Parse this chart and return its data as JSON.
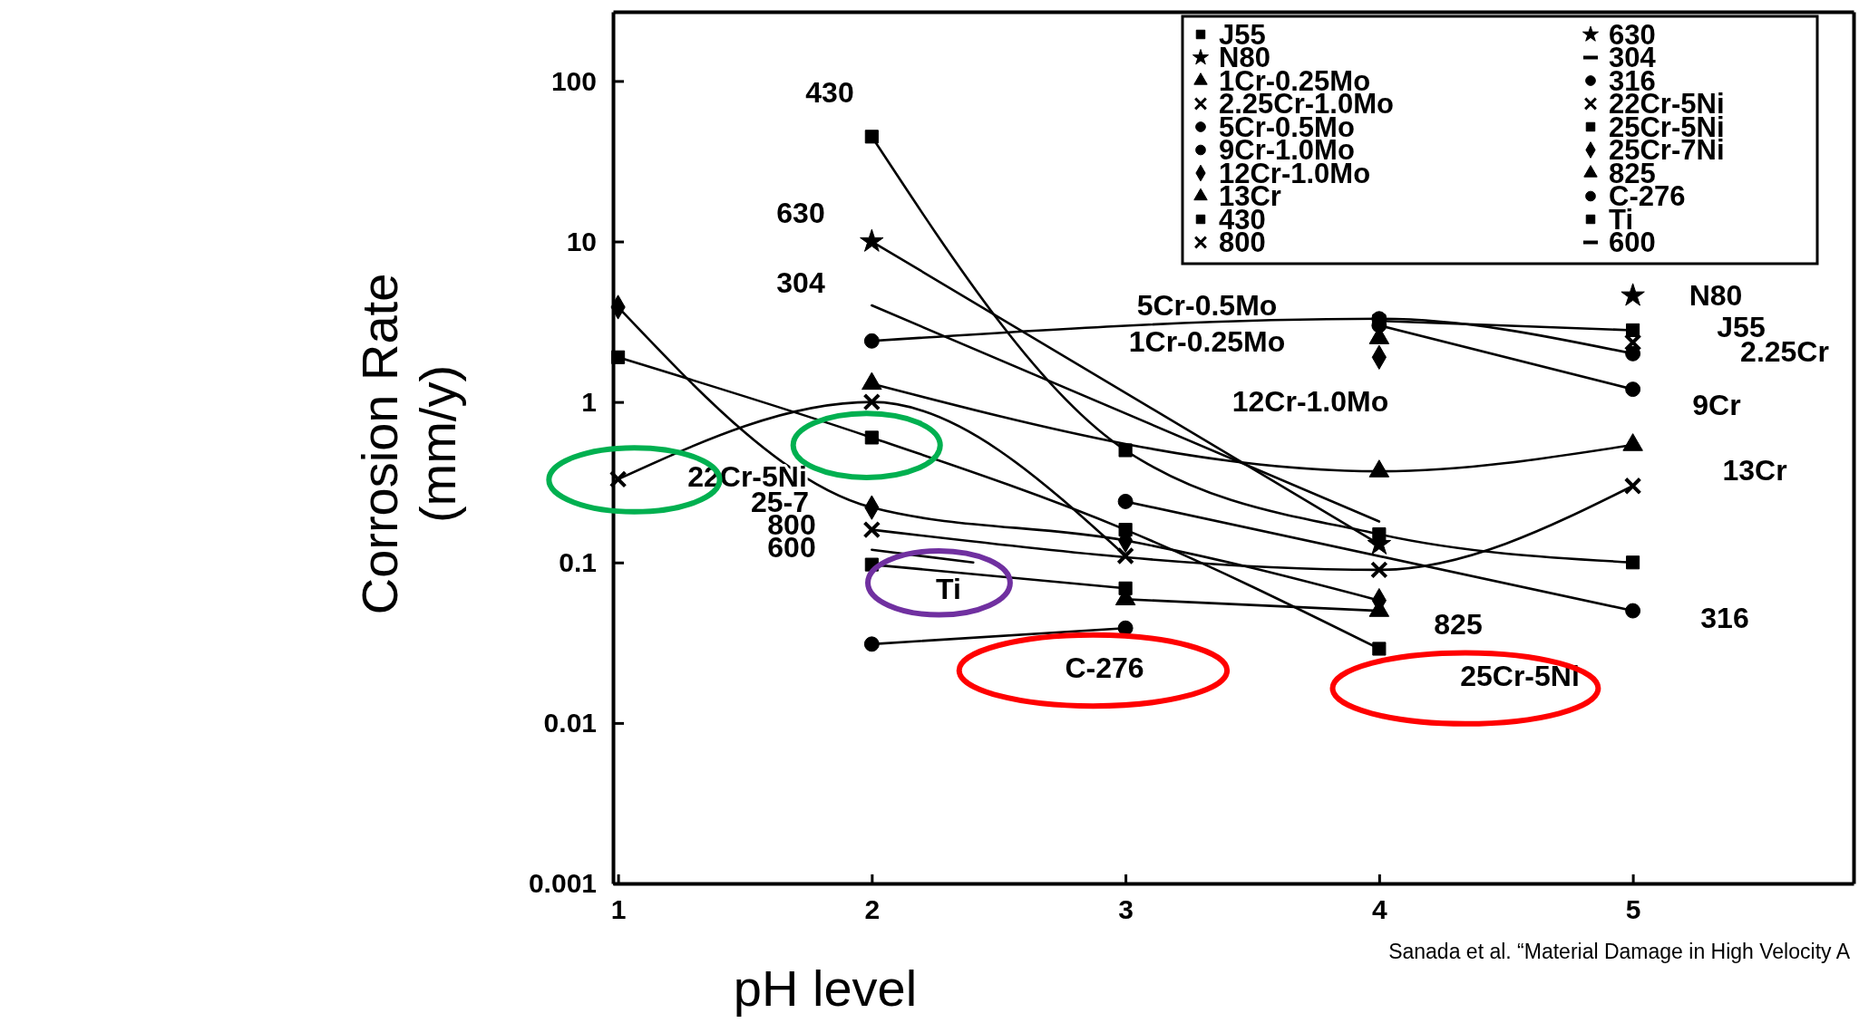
{
  "chart_data": {
    "type": "line",
    "xlabel": "pH level",
    "ylabel": "Corrosion Rate\n(mm/y)",
    "x": [
      1,
      2,
      3,
      4,
      5
    ],
    "xlim": [
      0.98,
      5.87
    ],
    "ylim": [
      0.001,
      270
    ],
    "xticks": [
      1,
      2,
      3,
      4,
      5
    ],
    "yticks": [
      0.001,
      0.01,
      0.1,
      1,
      10,
      100
    ],
    "log": "y",
    "grid": false,
    "legend": "top right",
    "line_style": "solid",
    "series": [
      {
        "name": "J55",
        "color": "#000000",
        "marker": "square",
        "values": [
          null,
          null,
          null,
          3.2,
          2.8
        ]
      },
      {
        "name": "N80",
        "color": "#000000",
        "marker": "star",
        "values": [
          null,
          null,
          null,
          null,
          4.6
        ]
      },
      {
        "name": "1Cr-0.25Mo",
        "color": "#000000",
        "marker": "triangle",
        "values": [
          null,
          null,
          null,
          2.5,
          null
        ]
      },
      {
        "name": "2.25Cr-1.0Mo",
        "color": "#000000",
        "marker": "cross",
        "values": [
          null,
          null,
          null,
          null,
          2.35
        ]
      },
      {
        "name": "5Cr-0.5Mo",
        "color": "#000000",
        "marker": "circle",
        "values": [
          null,
          2.4,
          null,
          3.3,
          2.0
        ]
      },
      {
        "name": "9Cr-1.0Mo",
        "color": "#000000",
        "marker": "circle",
        "values": [
          null,
          null,
          null,
          3.0,
          1.2
        ]
      },
      {
        "name": "12Cr-1.0Mo",
        "color": "#000000",
        "marker": "diamond",
        "values": [
          null,
          null,
          null,
          1.9,
          null
        ]
      },
      {
        "name": "13Cr",
        "color": "#000000",
        "marker": "triangle",
        "values": [
          null,
          1.3,
          null,
          0.37,
          0.54
        ]
      },
      {
        "name": "430",
        "color": "#000000",
        "marker": "square",
        "values": [
          null,
          45,
          0.5,
          0.15,
          0.1
        ]
      },
      {
        "name": "800",
        "color": "#000000",
        "marker": "cross",
        "values": [
          null,
          0.16,
          null,
          0.09,
          0.3
        ]
      },
      {
        "name": "630",
        "color": "#000000",
        "marker": "star",
        "values": [
          null,
          10,
          null,
          0.13,
          null
        ]
      },
      {
        "name": "304",
        "color": "#000000",
        "marker": "none",
        "values": [
          null,
          4.0,
          null,
          0.18,
          null
        ]
      },
      {
        "name": "316",
        "color": "#000000",
        "marker": "circle",
        "values": [
          null,
          null,
          0.24,
          null,
          0.05
        ]
      },
      {
        "name": "22Cr-5Ni",
        "color": "#000000",
        "marker": "cross",
        "values": [
          0.33,
          1.0,
          0.11,
          null,
          null
        ]
      },
      {
        "name": "25Cr-5Ni",
        "color": "#000000",
        "marker": "square",
        "values": [
          1.9,
          0.6,
          0.16,
          0.029,
          null
        ]
      },
      {
        "name": "25Cr-7Ni",
        "color": "#000000",
        "marker": "diamond",
        "values": [
          3.9,
          0.22,
          0.137,
          0.058,
          null
        ]
      },
      {
        "name": "825",
        "color": "#000000",
        "marker": "triangle",
        "values": [
          null,
          null,
          0.059,
          0.05,
          null
        ]
      },
      {
        "name": "C-276",
        "color": "#000000",
        "marker": "circle",
        "values": [
          null,
          0.031,
          0.039,
          null,
          null
        ]
      },
      {
        "name": "Ti",
        "color": "#000000",
        "marker": "square",
        "values": [
          null,
          0.097,
          0.069,
          null,
          null
        ]
      },
      {
        "name": "600",
        "color": "#000000",
        "marker": "none",
        "x": [
          2,
          2.4
        ],
        "values": [
          0.12,
          0.1
        ]
      }
    ],
    "annotations": [
      "430",
      "630",
      "304",
      "22Cr-5Ni",
      "25-7",
      "800",
      "600",
      "Ti",
      "C-276",
      "5Cr-0.5Mo",
      "1Cr-0.25Mo",
      "12Cr-1.0Mo",
      "N80",
      "J55",
      "2.25Cr",
      "9Cr",
      "13Cr",
      "825",
      "316",
      "25Cr-5Ni",
      "Sanada et al. “Material Damage in High Velocity A"
    ]
  }
}
